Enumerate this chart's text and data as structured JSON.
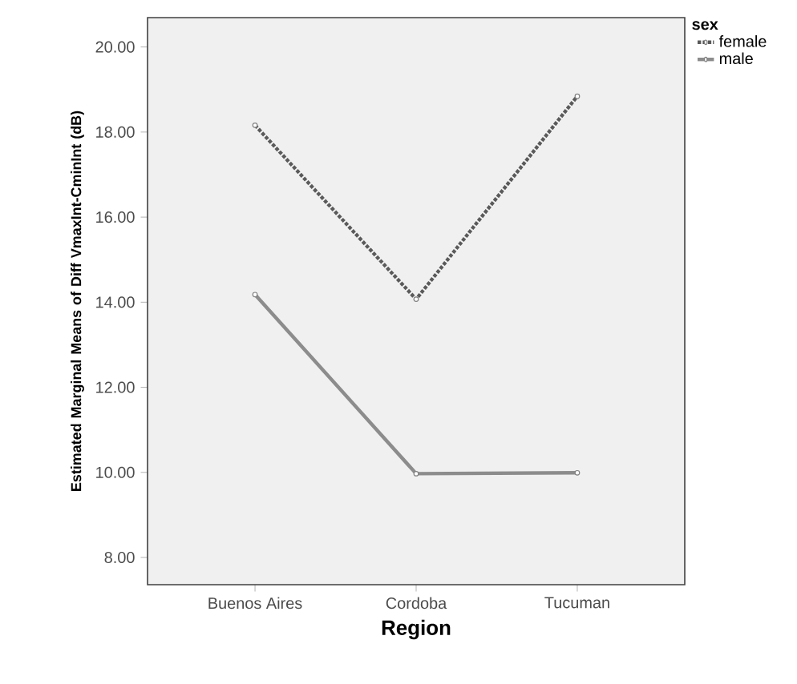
{
  "chart_data": {
    "type": "line",
    "xlabel": "Region",
    "ylabel": "Estimated Marginal Means of Diff VmaxInt-CminInt (dB)",
    "legend_title": "sex",
    "categories": [
      "Buenos Aires",
      "Cordoba",
      "Tucuman"
    ],
    "series": [
      {
        "name": "female",
        "color": "#5a5a5a",
        "values": [
          18.16,
          14.07,
          18.84
        ],
        "line_style": "dotted"
      },
      {
        "name": "male",
        "color": "#8c8c8c",
        "values": [
          14.18,
          9.97,
          9.99
        ],
        "line_style": "solid"
      }
    ],
    "ylim": [
      7.36,
      20.69
    ],
    "yticks": [
      {
        "value": 8,
        "label": "8.00"
      },
      {
        "value": 10,
        "label": "10.00"
      },
      {
        "value": 12,
        "label": "12.00"
      },
      {
        "value": 14,
        "label": "14.00"
      },
      {
        "value": 16,
        "label": "16.00"
      },
      {
        "value": 18,
        "label": "18.00"
      },
      {
        "value": 20,
        "label": "20.00"
      }
    ],
    "grid": false,
    "legend": "top right",
    "marker": "circle"
  }
}
